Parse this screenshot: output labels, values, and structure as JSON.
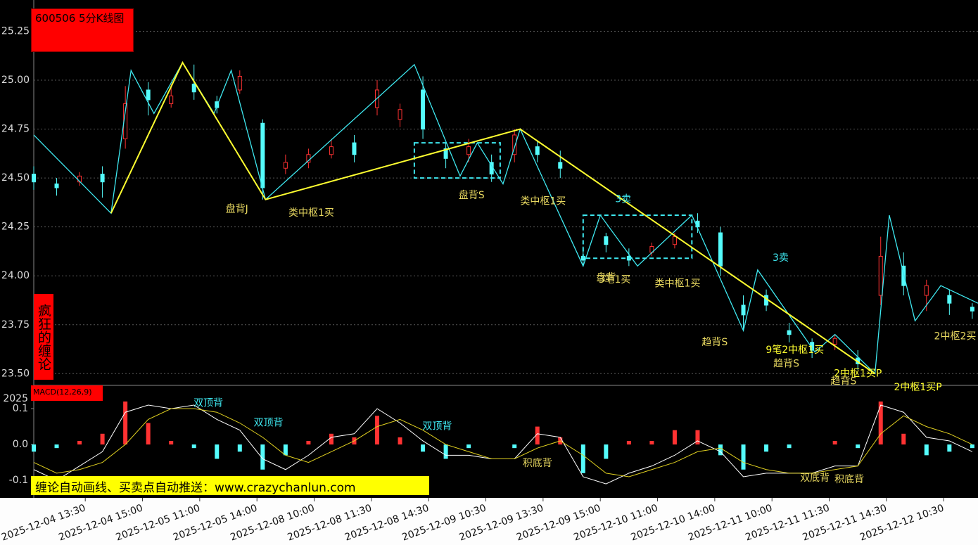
{
  "banner": "缠论自动画线、买卖点自动推送：www.crazychanlun.com",
  "chart_data": [
    {
      "type": "candlestick",
      "title": "600506 5分K线图",
      "side_label": "疯狂的缠论",
      "xlim": [
        0,
        330
      ],
      "ylim": [
        23.44,
        25.41
      ],
      "yticks": [
        25.25,
        {
          "value": 25,
          "label": "25.00"
        },
        24.75,
        {
          "value": 24.5,
          "label": "24.50"
        },
        24.25,
        {
          "value": 24,
          "label": "24.00"
        },
        23.75,
        {
          "value": 23.5,
          "label": "23.50"
        }
      ],
      "grid": true,
      "up_color": "#ff3232",
      "down_color": "#54fcfc",
      "candles": {
        "x": [
          0,
          8,
          16,
          24,
          32,
          40,
          48,
          56,
          64,
          72,
          80,
          88,
          96,
          104,
          112,
          120,
          128,
          136,
          144,
          152,
          160,
          168,
          176,
          184,
          192,
          200,
          208,
          216,
          224,
          232,
          240,
          248,
          256,
          264,
          272,
          280,
          288,
          296,
          304,
          312,
          320,
          328
        ],
        "open": [
          24.52,
          24.47,
          24.48,
          24.52,
          24.7,
          24.95,
          24.88,
          24.98,
          24.89,
          24.95,
          24.78,
          24.55,
          24.58,
          24.62,
          24.68,
          24.86,
          24.8,
          24.95,
          24.65,
          24.62,
          24.58,
          24.62,
          24.66,
          24.58,
          24.1,
          24.2,
          24.1,
          24.12,
          24.16,
          24.28,
          24.22,
          23.85,
          23.9,
          23.72,
          23.66,
          23.65,
          23.58,
          23.9,
          24.05,
          23.9,
          23.9,
          23.84
        ],
        "high": [
          24.56,
          24.5,
          24.53,
          24.56,
          24.97,
          24.99,
          24.98,
          25.08,
          24.92,
          25.05,
          24.8,
          24.62,
          24.65,
          24.7,
          24.72,
          25.0,
          24.88,
          25.02,
          24.68,
          24.7,
          24.62,
          24.75,
          24.69,
          24.64,
          24.15,
          24.22,
          24.14,
          24.17,
          24.22,
          24.32,
          24.25,
          23.9,
          23.93,
          23.76,
          23.68,
          23.7,
          23.62,
          24.2,
          24.12,
          23.98,
          23.93,
          23.86
        ],
        "low": [
          24.44,
          24.41,
          24.46,
          24.4,
          24.65,
          24.82,
          24.86,
          24.9,
          24.83,
          24.93,
          24.39,
          24.52,
          24.55,
          24.6,
          24.58,
          24.82,
          24.76,
          24.7,
          24.55,
          24.58,
          24.48,
          24.58,
          24.58,
          24.5,
          24.05,
          24.12,
          24.05,
          24.1,
          24.14,
          24.22,
          24.0,
          23.72,
          23.82,
          23.66,
          23.58,
          23.62,
          23.52,
          23.85,
          23.9,
          23.82,
          23.8,
          23.78
        ],
        "close": [
          24.48,
          24.45,
          24.51,
          24.48,
          24.88,
          24.9,
          24.92,
          24.94,
          24.86,
          25.02,
          24.45,
          24.58,
          24.62,
          24.66,
          24.62,
          24.95,
          24.85,
          24.75,
          24.6,
          24.66,
          24.52,
          24.72,
          24.62,
          24.55,
          24.08,
          24.16,
          24.08,
          24.15,
          24.2,
          24.25,
          24.05,
          23.8,
          23.85,
          23.7,
          23.62,
          23.68,
          23.55,
          24.1,
          23.95,
          23.95,
          23.86,
          23.82
        ]
      },
      "lines": [
        {
          "color": "#3ee8f0",
          "x": [
            0,
            27,
            34,
            42,
            52,
            63,
            69,
            81,
            133,
            149,
            155,
            164,
            170,
            192,
            198,
            211,
            230,
            248,
            253,
            273,
            280,
            294,
            299,
            308,
            317,
            330
          ],
          "values": [
            24.72,
            24.32,
            25.05,
            24.83,
            25.09,
            24.83,
            25.05,
            24.39,
            25.08,
            24.51,
            24.68,
            24.47,
            24.75,
            24.05,
            24.31,
            24.05,
            24.31,
            23.72,
            24.03,
            23.61,
            23.7,
            23.5,
            24.31,
            23.77,
            23.95,
            23.86
          ]
        },
        {
          "color": "#ffff30",
          "x": [
            27,
            52,
            81,
            170,
            294
          ],
          "values": [
            24.32,
            25.09,
            24.39,
            24.75,
            23.5
          ]
        }
      ],
      "boxes": [
        {
          "color": "#3ee8f0",
          "xlim": [
            133,
            163
          ],
          "ylim": [
            24.5,
            24.68
          ]
        },
        {
          "color": "#3ee8f0",
          "xlim": [
            192,
            230
          ],
          "ylim": [
            24.09,
            24.31
          ]
        }
      ],
      "annotations": [
        {
          "text": "盘背J",
          "x": 71,
          "y": 24.34,
          "color": "#e8d860"
        },
        {
          "text": "类中枢1买",
          "x": 97,
          "y": 24.32,
          "color": "#e8d860"
        },
        {
          "text": "盘背S",
          "x": 153,
          "y": 24.41,
          "color": "#e8d860"
        },
        {
          "text": "类中枢1买",
          "x": 178,
          "y": 24.38,
          "color": "#e8d860"
        },
        {
          "text": "3卖",
          "x": 206,
          "y": 24.39,
          "color": "#3ee8f0"
        },
        {
          "text": "盘背",
          "x": 200,
          "y": 23.99,
          "color": "#e8d860"
        },
        {
          "text": "3笔1买",
          "x": 203,
          "y": 23.98,
          "color": "#e8d860"
        },
        {
          "text": "类中枢1买",
          "x": 225,
          "y": 23.96,
          "color": "#e8d860"
        },
        {
          "text": "3卖",
          "x": 261,
          "y": 24.09,
          "color": "#3ee8f0"
        },
        {
          "text": "趋背S",
          "x": 238,
          "y": 23.66,
          "color": "#e8d860"
        },
        {
          "text": "9笔2中枢1买",
          "x": 266,
          "y": 23.62,
          "color": "#ffff30"
        },
        {
          "text": "趋背S",
          "x": 263,
          "y": 23.55,
          "color": "#e8d860"
        },
        {
          "text": "2中枢1买P",
          "x": 288,
          "y": 23.5,
          "color": "#ffff30"
        },
        {
          "text": "趋背S",
          "x": 283,
          "y": 23.46,
          "color": "#e8d860"
        },
        {
          "text": "2中枢1买P",
          "x": 309,
          "y": 23.43,
          "color": "#ffff30"
        },
        {
          "text": "2中枢2买",
          "x": 322,
          "y": 23.69,
          "color": "#e8d860"
        }
      ]
    },
    {
      "type": "macd",
      "title": "MACD(12,26,9)",
      "corner_text": "2025",
      "xlim": [
        0,
        330
      ],
      "ylim": [
        -0.149,
        0.165
      ],
      "yticks": [
        0.1,
        {
          "value": 0,
          "label": "0.0"
        },
        -0.1
      ],
      "xticks": [
        {
          "value": 18,
          "label": "2025-12-04 13:30"
        },
        {
          "value": 38,
          "label": "2025-12-04 15:00"
        },
        {
          "value": 58,
          "label": "2025-12-05 11:00"
        },
        {
          "value": 78,
          "label": "2025-12-05 14:00"
        },
        {
          "value": 98,
          "label": "2025-12-08 10:00"
        },
        {
          "value": 118,
          "label": "2025-12-08 11:30"
        },
        {
          "value": 138,
          "label": "2025-12-08 14:30"
        },
        {
          "value": 158,
          "label": "2025-12-09 10:30"
        },
        {
          "value": 178,
          "label": "2025-12-09 13:30"
        },
        {
          "value": 198,
          "label": "2025-12-09 15:00"
        },
        {
          "value": 218,
          "label": "2025-12-10 11:00"
        },
        {
          "value": 238,
          "label": "2025-12-10 14:00"
        },
        {
          "value": 258,
          "label": "2025-12-11 10:00"
        },
        {
          "value": 278,
          "label": "2025-12-11 11:30"
        },
        {
          "value": 298,
          "label": "2025-12-11 14:30"
        },
        {
          "value": 318,
          "label": "2025-12-12 10:30"
        }
      ],
      "x": [
        0,
        8,
        16,
        24,
        32,
        40,
        48,
        56,
        64,
        72,
        80,
        88,
        96,
        104,
        112,
        120,
        128,
        136,
        144,
        152,
        160,
        168,
        176,
        184,
        192,
        200,
        208,
        216,
        224,
        232,
        240,
        248,
        256,
        264,
        272,
        280,
        288,
        296,
        304,
        312,
        320,
        328
      ],
      "histogram": [
        -0.02,
        -0.01,
        0.01,
        0.03,
        0.12,
        0.06,
        0.01,
        -0.01,
        -0.04,
        -0.02,
        -0.07,
        -0.03,
        0.01,
        0.03,
        0.02,
        0.08,
        0.02,
        -0.02,
        -0.04,
        -0.01,
        0.0,
        -0.01,
        0.05,
        0.02,
        -0.08,
        -0.04,
        0.01,
        0.01,
        0.04,
        0.04,
        -0.03,
        -0.07,
        -0.02,
        -0.01,
        0.0,
        0.01,
        -0.01,
        0.12,
        0.03,
        -0.03,
        -0.02,
        -0.01
      ],
      "up_color": "#ff3232",
      "down_color": "#54fcfc",
      "series": [
        {
          "color": "#ffffff",
          "values": [
            -0.07,
            -0.1,
            -0.06,
            -0.02,
            0.09,
            0.11,
            0.1,
            0.11,
            0.07,
            0.04,
            -0.04,
            -0.07,
            -0.03,
            0.02,
            0.03,
            0.1,
            0.06,
            0.01,
            -0.03,
            -0.03,
            -0.04,
            -0.04,
            0.03,
            0.02,
            -0.09,
            -0.11,
            -0.08,
            -0.06,
            -0.03,
            0.01,
            -0.02,
            -0.09,
            -0.08,
            -0.08,
            -0.08,
            -0.06,
            -0.06,
            0.11,
            0.09,
            0.02,
            0.01,
            -0.02
          ]
        },
        {
          "color": "#e0d020",
          "values": [
            -0.05,
            -0.08,
            -0.07,
            -0.05,
            0.0,
            0.07,
            0.1,
            0.1,
            0.09,
            0.06,
            0.02,
            -0.03,
            -0.05,
            -0.02,
            0.01,
            0.05,
            0.07,
            0.04,
            0.0,
            -0.02,
            -0.04,
            -0.04,
            -0.01,
            0.01,
            -0.03,
            -0.08,
            -0.09,
            -0.07,
            -0.05,
            -0.02,
            -0.01,
            -0.05,
            -0.07,
            -0.08,
            -0.08,
            -0.07,
            -0.06,
            0.03,
            0.08,
            0.05,
            0.03,
            0.0
          ]
        }
      ],
      "annotations": [
        {
          "text": "双顶背",
          "x": 61,
          "y": 0.115,
          "color": "#3ee8f0"
        },
        {
          "text": "双顶背",
          "x": 82,
          "y": 0.06,
          "color": "#3ee8f0"
        },
        {
          "text": "双顶背",
          "x": 141,
          "y": 0.05,
          "color": "#3ee8f0"
        },
        {
          "text": "积底背",
          "x": 176,
          "y": -0.053,
          "color": "#e8d860"
        },
        {
          "text": "双底背",
          "x": 273,
          "y": -0.094,
          "color": "#e8d860"
        },
        {
          "text": "积底背",
          "x": 285,
          "y": -0.098,
          "color": "#e8d860"
        }
      ]
    }
  ]
}
